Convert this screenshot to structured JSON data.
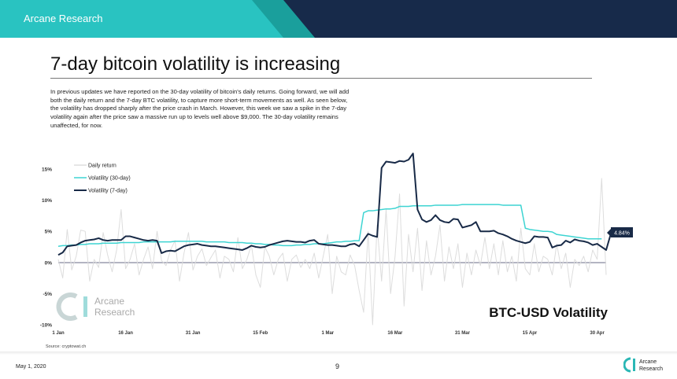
{
  "header": {
    "brand": "Arcane Research",
    "colors": {
      "teal": "#29C3C1",
      "navy": "#172A4A",
      "teal_dark": "#1A9F9C"
    }
  },
  "slide": {
    "title": "7-day bitcoin volatility is increasing",
    "intro": "In previous updates we have reported on the 30-day volatility of bitcoin's daily returns. Going forward, we will add both the daily return and the 7-day BTC volatility, to capture more short-term movements as well. As seen below, the volatility has dropped sharply after the price crash in March. However, this week we saw a spike in the 7-day volatility again after the price saw a massive run up to levels well above $9,000. The 30-day volatility remains unaffected, for now.",
    "source": "Source: cryptowat.ch"
  },
  "watermark": {
    "line1": "Arcane",
    "line2": "Research"
  },
  "footer": {
    "date": "May 1, 2020",
    "page": "9",
    "logo_line1": "Arcane",
    "logo_line2": "Research"
  },
  "chart_data": {
    "type": "line",
    "title": "BTC-USD Volatility",
    "ylim": [
      -10,
      15
    ],
    "yticks": [
      {
        "value": 15,
        "label": "15%"
      },
      {
        "value": 10,
        "label": "10%"
      },
      {
        "value": 5,
        "label": "5%"
      },
      {
        "value": 0,
        "label": "0%"
      },
      {
        "value": -5,
        "label": "-5%"
      },
      {
        "value": -10,
        "label": "-10%"
      }
    ],
    "xticks": [
      {
        "index": 0,
        "label": "1 Jan"
      },
      {
        "index": 15,
        "label": "16 Jan"
      },
      {
        "index": 30,
        "label": "31 Jan"
      },
      {
        "index": 45,
        "label": "15 Feb"
      },
      {
        "index": 60,
        "label": "1 Mar"
      },
      {
        "index": 75,
        "label": "16 Mar"
      },
      {
        "index": 90,
        "label": "31 Mar"
      },
      {
        "index": 105,
        "label": "15 Apr"
      },
      {
        "index": 120,
        "label": "30 Apr"
      }
    ],
    "legend_position": "top-left",
    "end_label": "4.84%",
    "series": [
      {
        "name": "Daily return",
        "color": "#DDDDDD",
        "values": [
          0.5,
          -2.5,
          5.3,
          -1.2,
          1.0,
          5.2,
          5.0,
          -3.0,
          0.5,
          -0.8,
          4.8,
          1.2,
          -1.5,
          2.0,
          8.5,
          -1.0,
          0.5,
          3.0,
          -2.0,
          0.5,
          2.5,
          -1.0,
          5.0,
          0.3,
          -0.5,
          2.0,
          3.5,
          -3.0,
          1.5,
          4.8,
          -1.2,
          1.0,
          2.2,
          -0.5,
          0.8,
          2.0,
          -2.5,
          1.0,
          0.5,
          -1.5,
          4.0,
          -1.0,
          0.5,
          2.8,
          -2.0,
          -4.0,
          2.5,
          1.0,
          -2.0,
          0.5,
          1.5,
          -3.0,
          0.5,
          1.2,
          -0.8,
          0.5,
          -1.0,
          1.5,
          -2.5,
          1.0,
          4.5,
          -5.0,
          1.0,
          -1.5,
          -2.0,
          1.2,
          -0.5,
          -4.5,
          -8.0,
          5.0,
          -10.0,
          6.0,
          -3.0,
          8.5,
          -5.0,
          1.0,
          11.0,
          -7.0,
          4.5,
          -1.5,
          5.5,
          -4.5,
          3.5,
          -2.0,
          1.0,
          6.0,
          -3.0,
          2.5,
          -1.0,
          3.0,
          -4.0,
          1.5,
          -2.0,
          2.0,
          -0.5,
          4.0,
          -1.0,
          3.0,
          -2.0,
          3.5,
          -1.5,
          1.0,
          -3.0,
          5.5,
          -1.0,
          -2.0,
          3.0,
          -1.5,
          1.0,
          0.5,
          -2.0,
          3.0,
          -1.0,
          1.5,
          -4.0,
          0.5,
          -0.5,
          1.0,
          -1.5,
          2.0,
          0.5,
          13.5,
          -2.0
        ]
      },
      {
        "name": "Volatility (30-day)",
        "color": "#3DD4D2",
        "values": [
          2.6,
          2.7,
          2.7,
          2.8,
          2.8,
          2.9,
          2.9,
          3.0,
          3.0,
          3.0,
          3.1,
          3.1,
          3.1,
          3.1,
          3.2,
          3.2,
          3.2,
          3.2,
          3.2,
          3.3,
          3.3,
          3.3,
          3.3,
          3.3,
          3.3,
          3.3,
          3.4,
          3.4,
          3.4,
          3.4,
          3.4,
          3.4,
          3.4,
          3.3,
          3.3,
          3.3,
          3.3,
          3.3,
          3.2,
          3.2,
          3.2,
          3.2,
          3.1,
          3.1,
          3.0,
          3.0,
          2.9,
          2.9,
          2.8,
          2.8,
          2.7,
          2.7,
          2.7,
          2.8,
          2.8,
          2.9,
          2.9,
          3.0,
          3.0,
          3.0,
          3.1,
          3.2,
          3.3,
          3.3,
          3.4,
          3.4,
          3.5,
          3.5,
          8.0,
          8.3,
          8.3,
          8.4,
          8.5,
          8.6,
          8.6,
          8.7,
          9.0,
          9.0,
          9.0,
          9.1,
          9.1,
          9.1,
          9.1,
          9.1,
          9.2,
          9.2,
          9.2,
          9.2,
          9.2,
          9.2,
          9.3,
          9.3,
          9.3,
          9.3,
          9.3,
          9.3,
          9.3,
          9.3,
          9.3,
          9.2,
          9.2,
          9.2,
          9.2,
          9.2,
          5.5,
          5.3,
          5.2,
          5.1,
          5.0,
          5.0,
          4.9,
          4.5,
          4.4,
          4.3,
          4.2,
          4.1,
          4.0,
          3.9,
          3.8,
          3.8,
          3.8,
          3.8
        ]
      },
      {
        "name": "Volatility (7-day)",
        "color": "#182A47",
        "values": [
          1.2,
          1.6,
          2.6,
          2.7,
          2.8,
          3.2,
          3.5,
          3.6,
          3.7,
          3.9,
          3.6,
          3.5,
          3.6,
          3.6,
          3.6,
          4.2,
          4.2,
          4.0,
          3.8,
          3.6,
          3.5,
          3.6,
          3.5,
          1.5,
          1.8,
          1.9,
          1.8,
          2.2,
          2.6,
          2.8,
          2.9,
          3.0,
          2.8,
          2.7,
          2.6,
          2.6,
          2.5,
          2.4,
          2.3,
          2.2,
          2.1,
          2.0,
          2.3,
          2.7,
          2.5,
          2.4,
          2.5,
          2.8,
          3.0,
          3.2,
          3.4,
          3.5,
          3.4,
          3.3,
          3.3,
          3.2,
          3.5,
          3.6,
          3.0,
          2.9,
          2.8,
          2.8,
          2.7,
          2.6,
          2.6,
          2.9,
          3.0,
          2.6,
          3.6,
          4.6,
          4.3,
          4.1,
          15.2,
          16.2,
          16.1,
          16.0,
          16.3,
          16.2,
          16.5,
          17.5,
          8.5,
          6.9,
          6.5,
          6.8,
          7.6,
          6.8,
          6.5,
          6.4,
          7.0,
          6.9,
          5.6,
          5.8,
          6.0,
          6.5,
          5.0,
          5.0,
          5.0,
          5.1,
          4.7,
          4.5,
          4.2,
          3.8,
          3.5,
          3.3,
          3.1,
          3.3,
          4.2,
          4.1,
          4.1,
          4.0,
          2.4,
          2.7,
          2.8,
          3.5,
          3.2,
          3.7,
          3.5,
          3.4,
          3.2,
          2.8,
          3.0,
          2.5,
          2.0,
          4.5,
          4.84
        ]
      }
    ]
  }
}
